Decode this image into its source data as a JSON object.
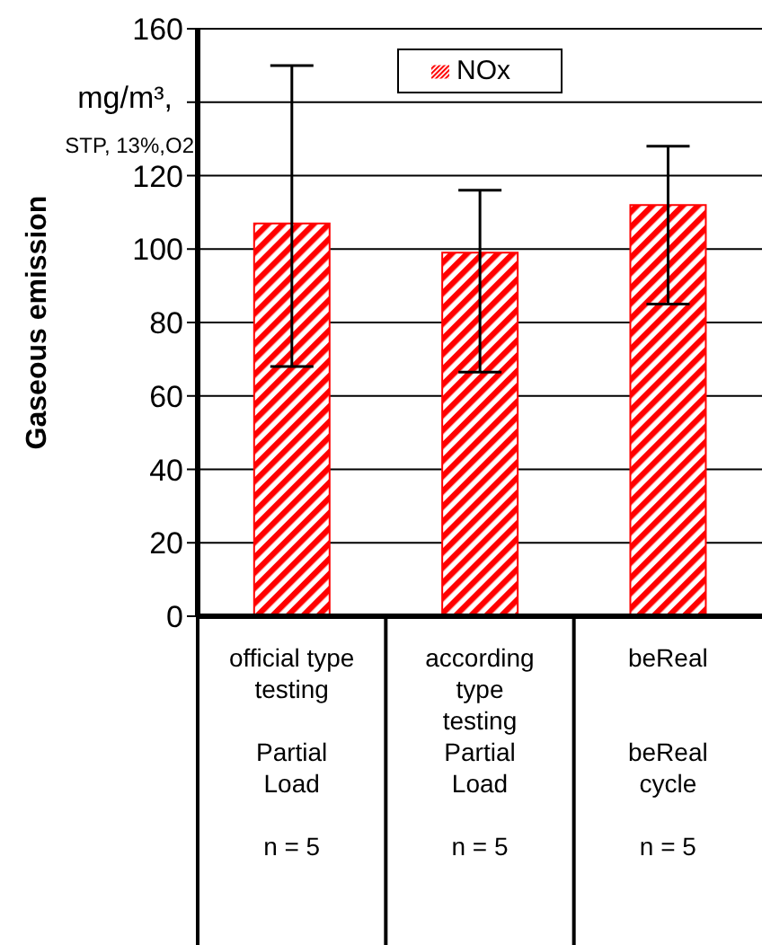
{
  "chart_data": {
    "type": "bar",
    "ylabel": "Gaseous emission",
    "annotations": [
      "mg/m³,",
      "STP, 13%,O2"
    ],
    "categories": [
      "official type\ntesting\n\nPartial\nLoad\n\nn = 5",
      "according\ntype\ntesting\nPartial\nLoad\n\nn = 5",
      "beReal\n\n\nbeReal\ncycle\n\nn = 5"
    ],
    "series": [
      {
        "name": "NOx",
        "color": "#ff0000",
        "values": [
          107,
          99,
          112
        ],
        "errors": [
          [
            68,
            150
          ],
          [
            66.5,
            116
          ],
          [
            85,
            128
          ]
        ]
      }
    ],
    "ylim": [
      0,
      160
    ],
    "yticks": [
      0,
      20,
      40,
      60,
      80,
      100,
      120,
      {
        "value": 140,
        "label": null
      },
      160
    ],
    "grid": "y",
    "legend": "top"
  }
}
